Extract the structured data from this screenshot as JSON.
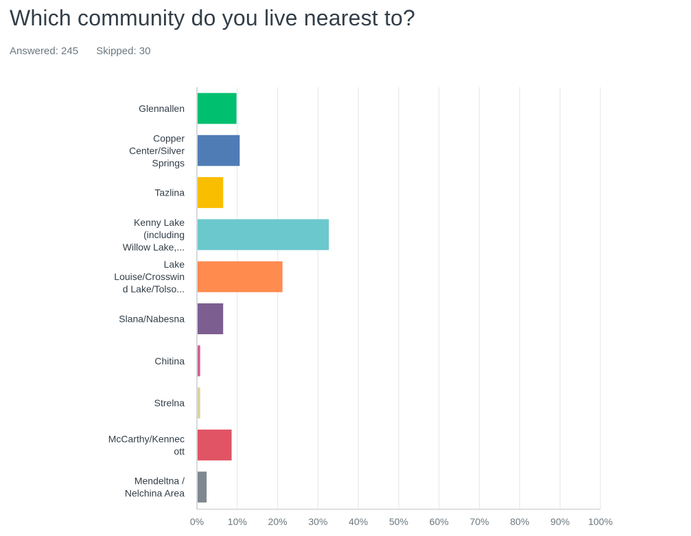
{
  "question": {
    "title": "Which community do you live nearest to?",
    "answered_label": "Answered: 245",
    "skipped_label": "Skipped: 30"
  },
  "chart_data": {
    "type": "bar",
    "orientation": "horizontal",
    "categories": [
      "Glennallen",
      "Copper Center/Silver Springs",
      "Tazlina",
      "Kenny Lake (including Willow Lake,...",
      "Lake Louise/Crosswind Lake/Tolso...",
      "Slana/Nabesna",
      "Chitina",
      "Strelna",
      "McCarthy/Kennecott",
      "Mendeltna / Nelchina Area"
    ],
    "category_label_lines": [
      [
        "Glennallen"
      ],
      [
        "Copper",
        "Center/Silver",
        "Springs"
      ],
      [
        "Tazlina"
      ],
      [
        "Kenny Lake",
        "(including",
        "Willow Lake,..."
      ],
      [
        "Lake",
        "Louise/Crosswin",
        "d Lake/Tolso..."
      ],
      [
        "Slana/Nabesna"
      ],
      [
        "Chitina"
      ],
      [
        "Strelna"
      ],
      [
        "McCarthy/Kennec",
        "ott"
      ],
      [
        "Mendeltna /",
        "Nelchina Area"
      ]
    ],
    "values": [
      9.8,
      10.6,
      6.5,
      32.7,
      21.2,
      6.5,
      0.8,
      0.8,
      8.6,
      2.4
    ],
    "colors": [
      "#00bf6f",
      "#507cb6",
      "#f9be00",
      "#6bc8cd",
      "#ff8b4f",
      "#7d5e90",
      "#d25f90",
      "#dad29b",
      "#e05465",
      "#7f8890"
    ],
    "xlim": [
      0,
      100
    ],
    "xticks": [
      "0%",
      "10%",
      "20%",
      "30%",
      "40%",
      "50%",
      "60%",
      "70%",
      "80%",
      "90%",
      "100%"
    ],
    "grid": true,
    "title": "",
    "xlabel": "",
    "ylabel": ""
  }
}
